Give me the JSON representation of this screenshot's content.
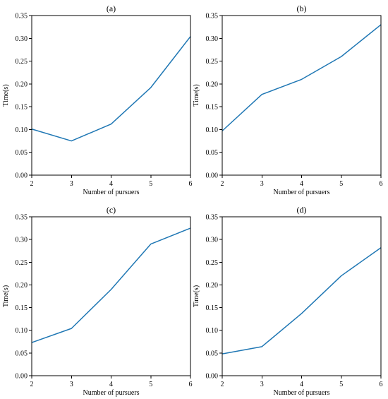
{
  "chart_data": [
    {
      "type": "line",
      "title": "(a)",
      "xlabel": "Number of pursuers",
      "ylabel": "Time(s)",
      "x": [
        2,
        3,
        4,
        5,
        6
      ],
      "series": [
        {
          "values": [
            0.101,
            0.075,
            0.112,
            0.192,
            0.304
          ]
        }
      ],
      "xlim": [
        2,
        6
      ],
      "ylim": [
        0,
        0.35
      ],
      "xticks": [
        "2",
        "3",
        "4",
        "5",
        "6"
      ],
      "yticks": [
        "0.00",
        "0.05",
        "0.10",
        "0.15",
        "0.20",
        "0.25",
        "0.30",
        "0.35"
      ],
      "grid": false,
      "line_color": "#1f77b4"
    },
    {
      "type": "line",
      "title": "(b)",
      "xlabel": "Number of pursuers",
      "ylabel": "Time(s)",
      "x": [
        2,
        3,
        4,
        5,
        6
      ],
      "series": [
        {
          "values": [
            0.097,
            0.177,
            0.21,
            0.26,
            0.33
          ]
        }
      ],
      "xlim": [
        2,
        6
      ],
      "ylim": [
        0,
        0.35
      ],
      "xticks": [
        "2",
        "3",
        "4",
        "5",
        "6"
      ],
      "yticks": [
        "0.00",
        "0.05",
        "0.10",
        "0.15",
        "0.20",
        "0.25",
        "0.30",
        "0.35"
      ],
      "grid": false,
      "line_color": "#1f77b4"
    },
    {
      "type": "line",
      "title": "(c)",
      "xlabel": "Number of pursuers",
      "ylabel": "Time(s)",
      "x": [
        2,
        3,
        4,
        5,
        6
      ],
      "series": [
        {
          "values": [
            0.073,
            0.104,
            0.19,
            0.29,
            0.325
          ]
        }
      ],
      "xlim": [
        2,
        6
      ],
      "ylim": [
        0,
        0.35
      ],
      "xticks": [
        "2",
        "3",
        "4",
        "5",
        "6"
      ],
      "yticks": [
        "0.00",
        "0.05",
        "0.10",
        "0.15",
        "0.20",
        "0.25",
        "0.30",
        "0.35"
      ],
      "grid": false,
      "line_color": "#1f77b4"
    },
    {
      "type": "line",
      "title": "(d)",
      "xlabel": "Number of pursuers",
      "ylabel": "Time(s)",
      "x": [
        2,
        3,
        4,
        5,
        6
      ],
      "series": [
        {
          "values": [
            0.048,
            0.064,
            0.137,
            0.22,
            0.282
          ]
        }
      ],
      "xlim": [
        2,
        6
      ],
      "ylim": [
        0,
        0.35
      ],
      "xticks": [
        "2",
        "3",
        "4",
        "5",
        "6"
      ],
      "yticks": [
        "0.00",
        "0.05",
        "0.10",
        "0.15",
        "0.20",
        "0.25",
        "0.30",
        "0.35"
      ],
      "grid": false,
      "line_color": "#1f77b4"
    }
  ]
}
